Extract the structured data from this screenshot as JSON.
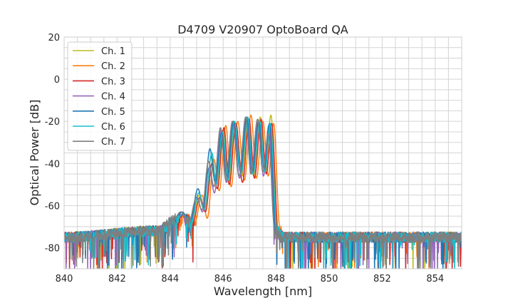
{
  "chart_data": {
    "type": "line",
    "title": "D4709 V20907 OptoBoard QA",
    "xlabel": "Wavelength [nm]",
    "ylabel": "Optical Power [dB]",
    "xlim": [
      840,
      855
    ],
    "ylim": [
      -90,
      20
    ],
    "xticks": [
      "840",
      "842",
      "844",
      "846",
      "848",
      "850",
      "852",
      "854"
    ],
    "yticks": [
      "20",
      "0",
      "-20",
      "-40",
      "-60",
      "-80"
    ],
    "grid": true,
    "legend_position": "top-left",
    "series": [
      {
        "name": "Ch. 1",
        "color": "#bcbd22",
        "x": [
          840,
          843.6,
          844.2,
          844.5,
          844.8,
          845.1,
          845.3,
          845.55,
          845.75,
          846.0,
          846.2,
          846.45,
          846.7,
          846.95,
          847.15,
          847.4,
          847.6,
          847.8,
          848.05,
          848.3,
          855
        ],
        "y": [
          -75,
          -72,
          -68,
          -64,
          -68,
          -55,
          -62,
          -37,
          -50,
          -24,
          -49,
          -21,
          -46,
          -19,
          -46,
          -18,
          -44,
          -17,
          -72,
          -75,
          -75
        ]
      },
      {
        "name": "Ch. 2",
        "color": "#ff7f0e",
        "x": [
          840,
          843.7,
          844.3,
          844.6,
          844.9,
          845.2,
          845.4,
          845.65,
          845.85,
          846.1,
          846.3,
          846.55,
          846.8,
          847.05,
          847.25,
          847.5,
          847.7,
          847.9,
          848.15,
          848.4,
          855
        ],
        "y": [
          -75,
          -72,
          -69,
          -65,
          -70,
          -55,
          -66,
          -38,
          -53,
          -22,
          -51,
          -20,
          -48,
          -17,
          -47,
          -20,
          -46,
          -21,
          -72,
          -75,
          -75
        ]
      },
      {
        "name": "Ch. 3",
        "color": "#d62728",
        "x": [
          840,
          843.63,
          844.23,
          844.53,
          844.83,
          845.13,
          845.33,
          845.58,
          845.78,
          846.03,
          846.23,
          846.48,
          846.73,
          846.98,
          847.18,
          847.43,
          847.63,
          847.83,
          848.08,
          848.33,
          855
        ],
        "y": [
          -75,
          -72,
          -68,
          -64,
          -69,
          -56,
          -63,
          -40,
          -52,
          -23,
          -50,
          -21,
          -49,
          -19,
          -47,
          -19,
          -45,
          -21,
          -72,
          -75,
          -75
        ]
      },
      {
        "name": "Ch. 4",
        "color": "#9467bd",
        "x": [
          840,
          843.52,
          844.12,
          844.42,
          844.72,
          845.02,
          845.22,
          845.47,
          845.67,
          845.92,
          846.12,
          846.37,
          846.62,
          846.87,
          847.07,
          847.32,
          847.52,
          847.72,
          847.97,
          848.22,
          855
        ],
        "y": [
          -75,
          -72,
          -69,
          -64,
          -70,
          -57,
          -63,
          -42,
          -54,
          -24,
          -49,
          -20,
          -47,
          -18,
          -45,
          -20,
          -46,
          -22,
          -72,
          -75,
          -75
        ]
      },
      {
        "name": "Ch. 5",
        "color": "#1f77b4",
        "x": [
          840,
          843.55,
          844.15,
          844.45,
          844.75,
          845.05,
          845.25,
          845.5,
          845.7,
          845.95,
          846.15,
          846.4,
          846.65,
          846.9,
          847.1,
          847.35,
          847.55,
          847.75,
          848.0,
          848.25,
          855
        ],
        "y": [
          -75,
          -72,
          -67,
          -63,
          -68,
          -52,
          -61,
          -33,
          -49,
          -25,
          -47,
          -20,
          -44,
          -18,
          -44,
          -20,
          -43,
          -21,
          -72,
          -75,
          -75
        ]
      },
      {
        "name": "Ch. 6",
        "color": "#17becf",
        "x": [
          840,
          843.58,
          844.18,
          844.48,
          844.78,
          845.08,
          845.28,
          845.58,
          845.73,
          845.98,
          846.18,
          846.43,
          846.68,
          846.93,
          847.13,
          847.38,
          847.58,
          847.78,
          848.03,
          848.28,
          855
        ],
        "y": [
          -75,
          -72,
          -68,
          -64,
          -69,
          -54,
          -62,
          -35,
          -50,
          -25,
          -48,
          -20,
          -45,
          -18,
          -45,
          -20,
          -44,
          -21,
          -72,
          -75,
          -75
        ]
      },
      {
        "name": "Ch. 7",
        "color": "#7f7f7f",
        "x": [
          840,
          843.5,
          844.1,
          844.4,
          844.7,
          845.0,
          845.2,
          845.45,
          845.65,
          845.9,
          846.1,
          846.35,
          846.6,
          846.85,
          847.05,
          847.3,
          847.5,
          847.7,
          847.95,
          848.2,
          855
        ],
        "y": [
          -75,
          -72,
          -67,
          -63,
          -68,
          -56,
          -62,
          -39,
          -51,
          -23,
          -48,
          -20,
          -46,
          -18,
          -45,
          -19,
          -44,
          -26,
          -72,
          -75,
          -75
        ]
      }
    ]
  }
}
